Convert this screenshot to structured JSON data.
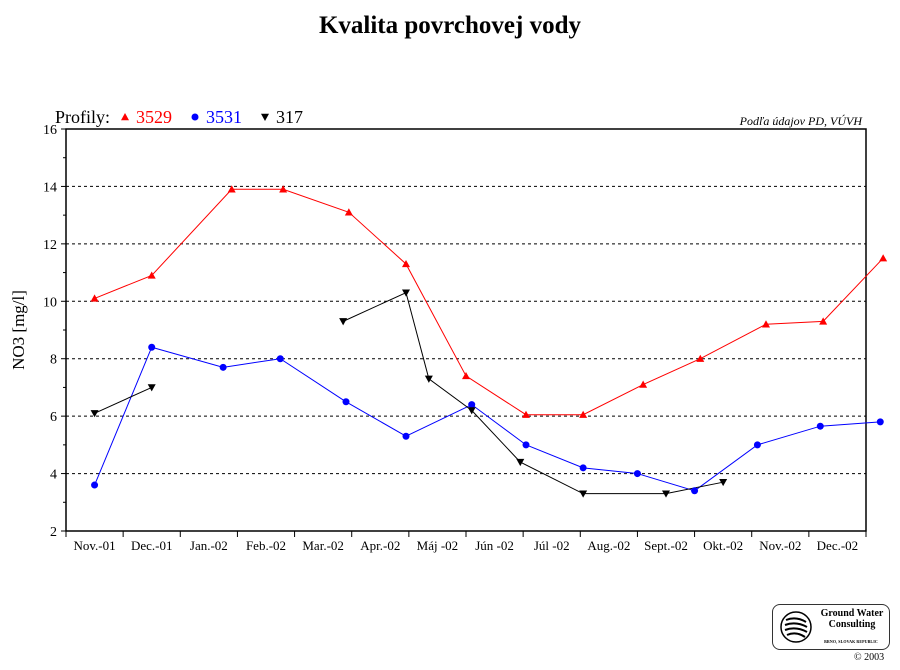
{
  "title": "Kvalita povrchovej vody",
  "chart_data": {
    "type": "line",
    "title": "Kvalita povrchovej vody",
    "source_note": "Podľa údajov PD, VÚVH",
    "legend_title": "Profily:",
    "legend_position": "top-left",
    "ylabel": "NO3 [mg/l]",
    "xlabel": "",
    "ylim": [
      2,
      16
    ],
    "yticks": [
      2,
      4,
      6,
      8,
      10,
      12,
      14,
      16
    ],
    "grid": true,
    "categories": [
      "Nov.-01",
      "Dec.-01",
      "Jan.-02",
      "Feb.-02",
      "Mar.-02",
      "Apr.-02",
      "Máj -02",
      "Jún -02",
      "Júl -02",
      "Aug.-02",
      "Sept.-02",
      "Okt.-02",
      "Nov.-02",
      "Dec.-02"
    ],
    "series": [
      {
        "name": "3529",
        "color": "#ff0000",
        "marker": "triangle-up",
        "segments": [
          [
            [
              0,
              10.1
            ],
            [
              1,
              10.9
            ],
            [
              2.4,
              13.9
            ],
            [
              3.3,
              13.9
            ],
            [
              4.45,
              13.1
            ],
            [
              5.45,
              11.3
            ],
            [
              6.5,
              7.4
            ],
            [
              7.55,
              6.05
            ],
            [
              8.55,
              6.05
            ],
            [
              9.6,
              7.1
            ],
            [
              10.6,
              8.0
            ],
            [
              11.75,
              9.2
            ],
            [
              12.75,
              9.3
            ],
            [
              13.8,
              11.5
            ]
          ]
        ]
      },
      {
        "name": "3531",
        "color": "#0000ff",
        "marker": "circle",
        "segments": [
          [
            [
              0,
              3.6
            ],
            [
              1,
              8.4
            ],
            [
              2.25,
              7.7
            ],
            [
              3.25,
              8.0
            ],
            [
              4.4,
              6.5
            ],
            [
              5.45,
              5.3
            ],
            [
              6.6,
              6.4
            ],
            [
              7.55,
              5.0
            ],
            [
              8.55,
              4.2
            ],
            [
              9.5,
              4.0
            ],
            [
              10.5,
              3.4
            ],
            [
              11.6,
              5.0
            ],
            [
              12.7,
              5.65
            ],
            [
              13.75,
              5.8
            ]
          ]
        ]
      },
      {
        "name": "317",
        "color": "#000000",
        "marker": "triangle-down",
        "segments": [
          [
            [
              0,
              6.1
            ],
            [
              1,
              7.0
            ]
          ],
          [
            [
              4.35,
              9.3
            ],
            [
              5.45,
              10.3
            ],
            [
              5.85,
              7.3
            ],
            [
              6.6,
              6.2
            ],
            [
              7.45,
              4.4
            ],
            [
              8.55,
              3.3
            ],
            [
              10.0,
              3.3
            ],
            [
              11.0,
              3.7
            ]
          ]
        ]
      }
    ]
  },
  "logo": {
    "name_line1": "Ground Water",
    "name_line2": "Consulting",
    "subtitle": "BRNO, SLOVAK REPUBLIC"
  },
  "copyright": "© 2003"
}
